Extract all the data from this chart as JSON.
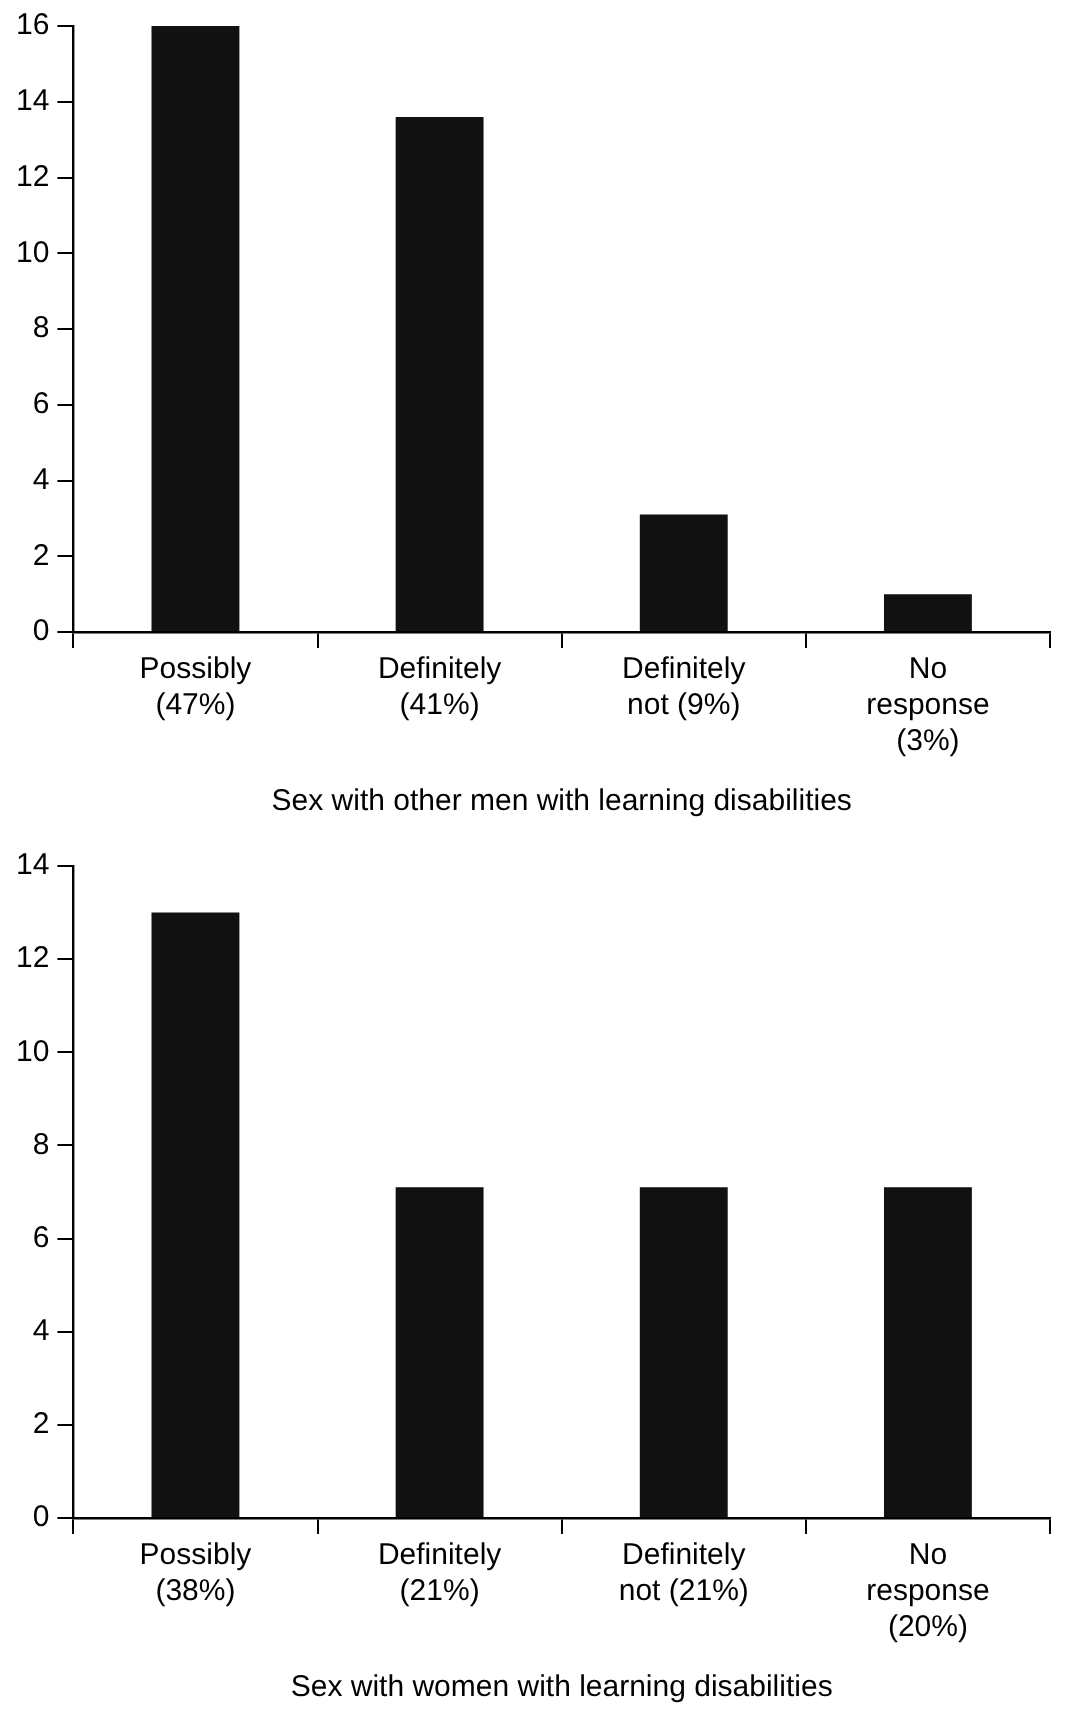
{
  "chart_data": [
    {
      "type": "bar",
      "xlabel": "Sex with other men with learning disabilities",
      "categories": [
        "Possibly\n(47%)",
        "Definitely\n(41%)",
        "Definitely\nnot (9%)",
        "No\nresponse\n(3%)"
      ],
      "values": [
        16,
        13.6,
        3.1,
        1
      ],
      "color": "#111111",
      "ylim": [
        0,
        16
      ],
      "yticks": [
        0,
        2,
        4,
        6,
        8,
        10,
        12,
        14,
        16
      ],
      "grid": false,
      "legend": false
    },
    {
      "type": "bar",
      "xlabel": "Sex with women with learning disabilities",
      "categories": [
        "Possibly\n(38%)",
        "Definitely\n(21%)",
        "Definitely\nnot (21%)",
        "No\nresponse\n(20%)"
      ],
      "values": [
        13,
        7.1,
        7.1,
        7.1
      ],
      "color": "#111111",
      "ylim": [
        0,
        14
      ],
      "yticks": [
        0,
        2,
        4,
        6,
        8,
        10,
        12,
        14
      ],
      "grid": false,
      "legend": false
    }
  ]
}
